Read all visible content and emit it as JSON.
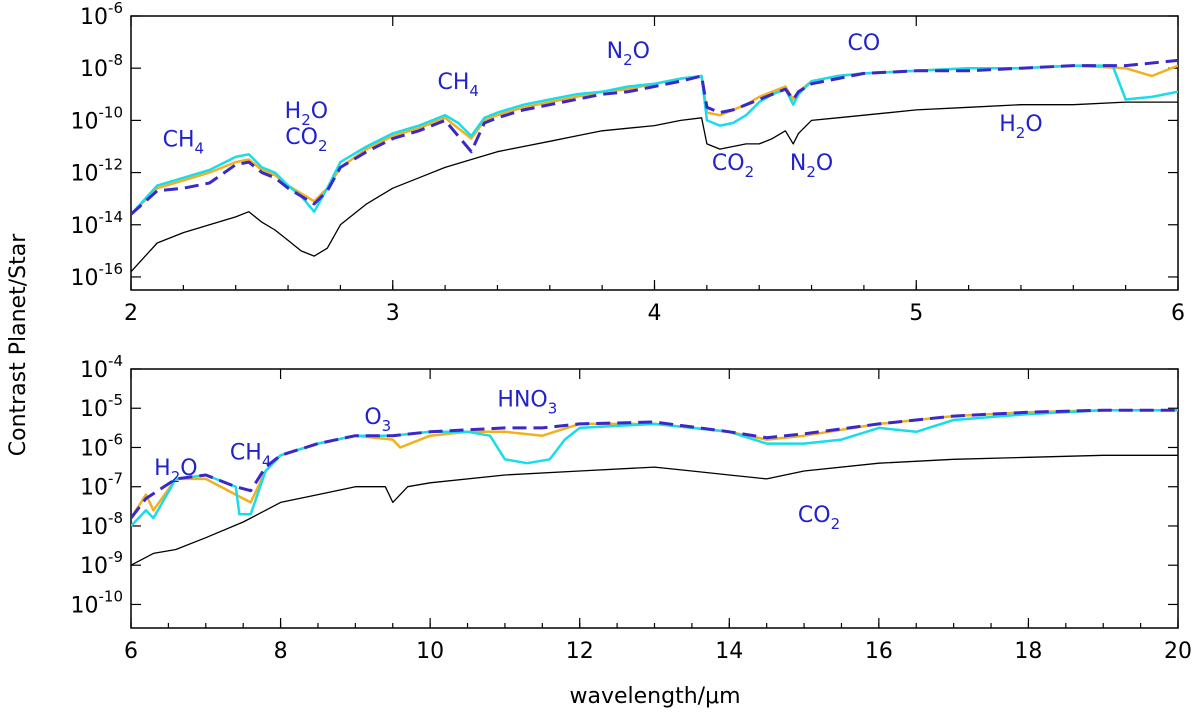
{
  "figure": {
    "ylabel": "Contrast Planet/Star",
    "xlabel": "wavelength/μm"
  },
  "chart_data": [
    {
      "type": "line",
      "yscale": "log",
      "xlim": [
        2,
        6
      ],
      "ylim_exp": [
        -16.5,
        -6
      ],
      "xticks": [
        "2",
        "3",
        "4",
        "5",
        "6"
      ],
      "yticks": [
        {
          "exp": -6,
          "label": "10",
          "sup": "-6"
        },
        {
          "exp": -8,
          "label": "10",
          "sup": "-8"
        },
        {
          "exp": -10,
          "label": "10",
          "sup": "-10"
        },
        {
          "exp": -12,
          "label": "10",
          "sup": "-12"
        },
        {
          "exp": -14,
          "label": "10",
          "sup": "-14"
        },
        {
          "exp": -16,
          "label": "10",
          "sup": "-16"
        }
      ],
      "series": [
        {
          "name": "black",
          "color": "#000000",
          "dash": "",
          "width": 1.3,
          "x": [
            2.0,
            2.1,
            2.2,
            2.3,
            2.4,
            2.45,
            2.5,
            2.55,
            2.6,
            2.65,
            2.7,
            2.75,
            2.8,
            2.9,
            3.0,
            3.1,
            3.2,
            3.3,
            3.4,
            3.5,
            3.6,
            3.7,
            3.8,
            3.9,
            4.0,
            4.1,
            4.18,
            4.2,
            4.25,
            4.3,
            4.35,
            4.4,
            4.45,
            4.5,
            4.53,
            4.55,
            4.6,
            4.7,
            4.8,
            5.0,
            5.2,
            5.4,
            5.6,
            5.8,
            6.0
          ],
          "y": [
            -15.8,
            -14.7,
            -14.3,
            -14.0,
            -13.7,
            -13.5,
            -13.9,
            -14.2,
            -14.6,
            -15.0,
            -15.2,
            -14.9,
            -14.0,
            -13.2,
            -12.6,
            -12.2,
            -11.8,
            -11.5,
            -11.2,
            -11.0,
            -10.8,
            -10.6,
            -10.4,
            -10.3,
            -10.2,
            -10.0,
            -9.9,
            -10.9,
            -11.1,
            -11.0,
            -10.9,
            -10.9,
            -10.7,
            -10.4,
            -10.9,
            -10.5,
            -10.0,
            -9.9,
            -9.8,
            -9.6,
            -9.5,
            -9.4,
            -9.4,
            -9.3,
            -9.3
          ]
        },
        {
          "name": "orange",
          "color": "#f2b01e",
          "dash": "",
          "width": 2.5,
          "x": [
            2.0,
            2.1,
            2.2,
            2.3,
            2.4,
            2.45,
            2.5,
            2.55,
            2.6,
            2.65,
            2.7,
            2.75,
            2.8,
            2.9,
            3.0,
            3.1,
            3.2,
            3.25,
            3.3,
            3.35,
            3.4,
            3.5,
            3.6,
            3.7,
            3.8,
            3.9,
            4.0,
            4.1,
            4.18,
            4.2,
            4.25,
            4.3,
            4.35,
            4.4,
            4.45,
            4.5,
            4.53,
            4.55,
            4.6,
            4.7,
            4.8,
            5.0,
            5.2,
            5.4,
            5.6,
            5.8,
            5.9,
            6.0
          ],
          "y": [
            -13.6,
            -12.6,
            -12.3,
            -12.0,
            -11.6,
            -11.5,
            -11.9,
            -12.1,
            -12.5,
            -12.8,
            -13.1,
            -12.6,
            -11.8,
            -11.1,
            -10.6,
            -10.3,
            -9.9,
            -10.3,
            -10.7,
            -10.0,
            -9.8,
            -9.5,
            -9.3,
            -9.1,
            -8.9,
            -8.8,
            -8.6,
            -8.4,
            -8.3,
            -9.7,
            -9.8,
            -9.6,
            -9.4,
            -9.1,
            -8.9,
            -8.7,
            -9.2,
            -8.9,
            -8.5,
            -8.3,
            -8.2,
            -8.1,
            -8.0,
            -8.0,
            -7.9,
            -8.0,
            -8.3,
            -7.9
          ]
        },
        {
          "name": "cyan",
          "color": "#19dceb",
          "dash": "",
          "width": 2.5,
          "x": [
            2.0,
            2.1,
            2.2,
            2.3,
            2.4,
            2.45,
            2.5,
            2.55,
            2.6,
            2.65,
            2.7,
            2.75,
            2.8,
            2.9,
            3.0,
            3.1,
            3.2,
            3.25,
            3.3,
            3.35,
            3.4,
            3.5,
            3.6,
            3.7,
            3.8,
            3.9,
            4.0,
            4.1,
            4.18,
            4.2,
            4.25,
            4.3,
            4.35,
            4.4,
            4.45,
            4.5,
            4.53,
            4.55,
            4.6,
            4.7,
            4.8,
            5.0,
            5.2,
            5.4,
            5.6,
            5.75,
            5.8,
            5.9,
            6.0
          ],
          "y": [
            -13.6,
            -12.5,
            -12.2,
            -11.9,
            -11.4,
            -11.3,
            -11.8,
            -12.0,
            -12.5,
            -12.9,
            -13.5,
            -12.6,
            -11.6,
            -11.0,
            -10.5,
            -10.2,
            -9.8,
            -10.1,
            -10.6,
            -9.9,
            -9.7,
            -9.4,
            -9.2,
            -9.0,
            -8.9,
            -8.7,
            -8.6,
            -8.4,
            -8.3,
            -10.0,
            -10.2,
            -10.1,
            -9.8,
            -9.3,
            -9.0,
            -8.8,
            -9.4,
            -9.0,
            -8.5,
            -8.3,
            -8.2,
            -8.1,
            -8.0,
            -8.0,
            -7.9,
            -7.9,
            -9.2,
            -9.1,
            -8.9
          ]
        },
        {
          "name": "blue-dashed",
          "color": "#3a28c8",
          "dash": "14 7",
          "width": 3,
          "x": [
            2.0,
            2.1,
            2.2,
            2.3,
            2.4,
            2.45,
            2.5,
            2.55,
            2.6,
            2.65,
            2.7,
            2.75,
            2.8,
            2.9,
            3.0,
            3.1,
            3.2,
            3.25,
            3.3,
            3.35,
            3.4,
            3.5,
            3.6,
            3.7,
            3.8,
            3.9,
            4.0,
            4.1,
            4.18,
            4.2,
            4.25,
            4.3,
            4.35,
            4.4,
            4.45,
            4.5,
            4.53,
            4.55,
            4.6,
            4.7,
            4.8,
            5.0,
            5.2,
            5.4,
            5.6,
            5.8,
            6.0
          ],
          "y": [
            -13.6,
            -12.7,
            -12.6,
            -12.4,
            -11.7,
            -11.6,
            -12.0,
            -12.2,
            -12.6,
            -12.9,
            -13.2,
            -12.7,
            -11.8,
            -11.2,
            -10.7,
            -10.4,
            -10.0,
            -10.6,
            -11.2,
            -10.1,
            -9.9,
            -9.6,
            -9.4,
            -9.2,
            -9.0,
            -8.9,
            -8.7,
            -8.5,
            -8.3,
            -9.5,
            -9.7,
            -9.6,
            -9.4,
            -9.2,
            -9.0,
            -8.8,
            -9.2,
            -8.9,
            -8.6,
            -8.4,
            -8.2,
            -8.1,
            -8.1,
            -8.0,
            -7.9,
            -7.9,
            -7.7
          ]
        }
      ],
      "annotations": [
        {
          "text": "CH",
          "sub": "4",
          "x": 2.2,
          "y": -11.0
        },
        {
          "text": "H",
          "sub": "2",
          "after": "O",
          "x": 2.67,
          "y": -9.9
        },
        {
          "text": "CO",
          "sub": "2",
          "x": 2.67,
          "y": -10.9
        },
        {
          "text": "CH",
          "sub": "4",
          "x": 3.25,
          "y": -8.8
        },
        {
          "text": "N",
          "sub": "2",
          "after": "O",
          "x": 3.9,
          "y": -7.6
        },
        {
          "text": "CO",
          "x": 4.8,
          "y": -7.3
        },
        {
          "text": "H",
          "sub": "2",
          "after": "O",
          "x": 5.4,
          "y": -10.4
        },
        {
          "text": "CO",
          "sub": "2",
          "x": 4.3,
          "y": -11.9
        },
        {
          "text": "N",
          "sub": "2",
          "after": "O",
          "x": 4.6,
          "y": -11.9
        }
      ]
    },
    {
      "type": "line",
      "yscale": "log",
      "xlim": [
        6,
        20
      ],
      "ylim_exp": [
        -10.6,
        -4
      ],
      "xticks": [
        "6",
        "8",
        "10",
        "12",
        "14",
        "16",
        "18",
        "20"
      ],
      "yticks": [
        {
          "exp": -4,
          "label": "10",
          "sup": "-4"
        },
        {
          "exp": -5,
          "label": "10",
          "sup": "-5"
        },
        {
          "exp": -6,
          "label": "10",
          "sup": "-6"
        },
        {
          "exp": -7,
          "label": "10",
          "sup": "-7"
        },
        {
          "exp": -8,
          "label": "10",
          "sup": "-8"
        },
        {
          "exp": -9,
          "label": "10",
          "sup": "-9"
        },
        {
          "exp": -10,
          "label": "10",
          "sup": "-10"
        }
      ],
      "series": [
        {
          "name": "black",
          "color": "#000000",
          "dash": "",
          "width": 1.3,
          "x": [
            6.0,
            6.3,
            6.6,
            7.0,
            7.5,
            7.8,
            8.0,
            8.5,
            9.0,
            9.4,
            9.5,
            9.7,
            10.0,
            11.0,
            12.0,
            13.0,
            13.5,
            14.0,
            14.5,
            15.0,
            16.0,
            17.0,
            18.0,
            19.0,
            20.0
          ],
          "y": [
            -9.0,
            -8.7,
            -8.6,
            -8.3,
            -7.9,
            -7.6,
            -7.4,
            -7.2,
            -7.0,
            -7.0,
            -7.4,
            -7.0,
            -6.9,
            -6.7,
            -6.6,
            -6.5,
            -6.6,
            -6.7,
            -6.8,
            -6.6,
            -6.4,
            -6.3,
            -6.25,
            -6.2,
            -6.2
          ]
        },
        {
          "name": "orange",
          "color": "#f2b01e",
          "dash": "",
          "width": 2.5,
          "x": [
            6.0,
            6.2,
            6.3,
            6.6,
            7.0,
            7.4,
            7.6,
            7.8,
            8.0,
            8.5,
            9.0,
            9.5,
            9.6,
            10.0,
            10.5,
            11.0,
            11.5,
            12.0,
            13.0,
            14.0,
            14.5,
            15.0,
            16.0,
            17.0,
            18.0,
            19.0,
            20.0
          ],
          "y": [
            -7.8,
            -7.2,
            -7.6,
            -6.8,
            -6.8,
            -7.2,
            -7.4,
            -6.6,
            -6.2,
            -5.9,
            -5.7,
            -5.8,
            -6.0,
            -5.7,
            -5.6,
            -5.6,
            -5.7,
            -5.4,
            -5.4,
            -5.6,
            -5.8,
            -5.7,
            -5.4,
            -5.2,
            -5.1,
            -5.05,
            -5.05
          ]
        },
        {
          "name": "cyan",
          "color": "#19dceb",
          "dash": "",
          "width": 2.5,
          "x": [
            6.0,
            6.2,
            6.3,
            6.6,
            7.0,
            7.4,
            7.45,
            7.6,
            7.8,
            8.0,
            8.5,
            9.0,
            9.5,
            10.0,
            10.5,
            10.8,
            11.0,
            11.3,
            11.6,
            11.8,
            12.0,
            13.0,
            14.0,
            14.5,
            15.0,
            15.5,
            16.0,
            16.5,
            17.0,
            18.0,
            19.0,
            20.0
          ],
          "y": [
            -8.0,
            -7.6,
            -7.8,
            -6.8,
            -6.7,
            -7.0,
            -7.7,
            -7.7,
            -6.6,
            -6.2,
            -5.9,
            -5.7,
            -5.7,
            -5.6,
            -5.6,
            -5.7,
            -6.3,
            -6.4,
            -6.3,
            -5.8,
            -5.5,
            -5.4,
            -5.6,
            -5.9,
            -5.9,
            -5.8,
            -5.5,
            -5.6,
            -5.3,
            -5.15,
            -5.05,
            -5.05
          ]
        },
        {
          "name": "blue-dashed",
          "color": "#3a28c8",
          "dash": "14 7",
          "width": 3,
          "x": [
            6.0,
            6.2,
            6.6,
            7.0,
            7.4,
            7.6,
            7.8,
            8.0,
            8.5,
            9.0,
            9.5,
            10.0,
            10.5,
            11.0,
            11.5,
            12.0,
            13.0,
            14.0,
            14.5,
            15.0,
            16.0,
            17.0,
            18.0,
            19.0,
            20.0
          ],
          "y": [
            -7.8,
            -7.3,
            -6.8,
            -6.7,
            -7.0,
            -7.1,
            -6.5,
            -6.2,
            -5.9,
            -5.7,
            -5.7,
            -5.6,
            -5.55,
            -5.5,
            -5.5,
            -5.4,
            -5.35,
            -5.6,
            -5.75,
            -5.65,
            -5.4,
            -5.2,
            -5.1,
            -5.05,
            -5.05
          ]
        }
      ],
      "annotations": [
        {
          "text": "H",
          "sub": "2",
          "after": "O",
          "x": 6.6,
          "y": -6.7
        },
        {
          "text": "CH",
          "sub": "4",
          "x": 7.6,
          "y": -6.3
        },
        {
          "text": "O",
          "sub": "3",
          "x": 9.3,
          "y": -5.4
        },
        {
          "text": "HNO",
          "sub": "3",
          "x": 11.3,
          "y": -4.95
        },
        {
          "text": "CO",
          "sub": "2",
          "x": 15.2,
          "y": -7.9
        }
      ]
    }
  ]
}
